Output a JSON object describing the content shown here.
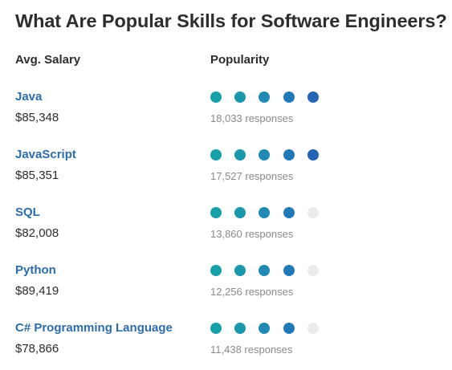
{
  "title": "What Are Popular Skills for Software Engineers?",
  "headers": {
    "salary": "Avg. Salary",
    "popularity": "Popularity"
  },
  "dot_colors": [
    "#17a2a8",
    "#1a97ac",
    "#1f8ab3",
    "#2179ba",
    "#2464b6"
  ],
  "dot_empty_color": "#e9ebee",
  "popularity_scale_max": 5,
  "skills": [
    {
      "name": "Java",
      "salary": "$85,348",
      "popularity": 5,
      "responses": "18,033 responses"
    },
    {
      "name": "JavaScript",
      "salary": "$85,351",
      "popularity": 5,
      "responses": "17,527 responses"
    },
    {
      "name": "SQL",
      "salary": "$82,008",
      "popularity": 4,
      "responses": "13,860 responses"
    },
    {
      "name": "Python",
      "salary": "$89,419",
      "popularity": 4,
      "responses": "12,256 responses"
    },
    {
      "name": "C# Programming Language",
      "salary": "$78,866",
      "popularity": 4,
      "responses": "11,438 responses"
    }
  ]
}
